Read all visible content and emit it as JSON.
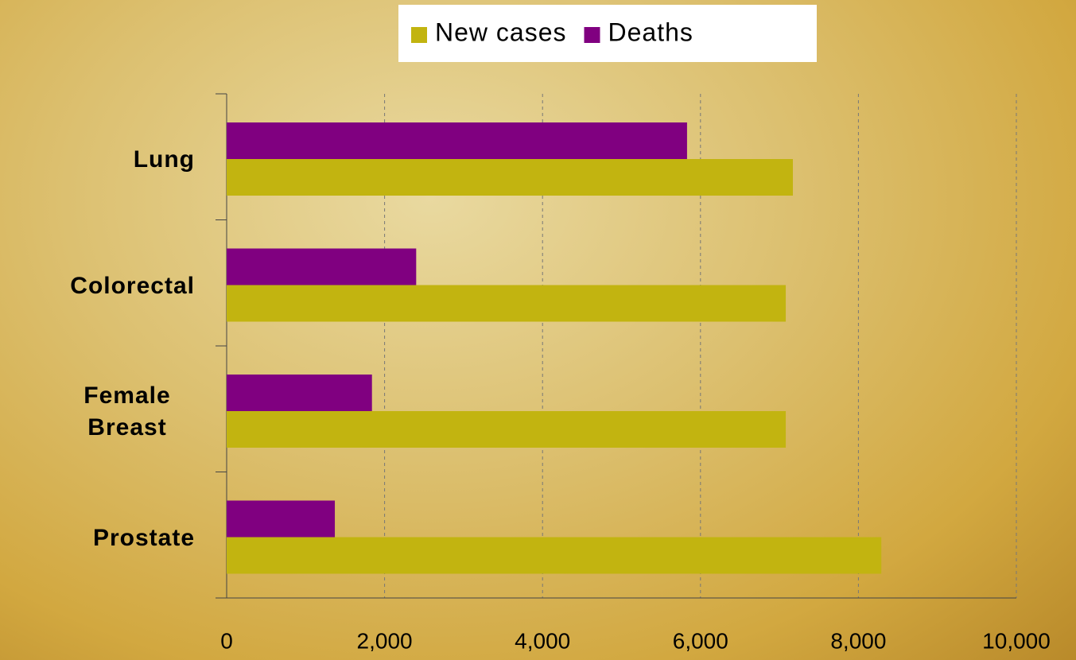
{
  "chart_data": {
    "type": "hbar",
    "categories": [
      "Lung",
      "Colorectal",
      "Female Breast",
      "Prostate"
    ],
    "series": [
      {
        "name": "New cases",
        "color": "#c2b410",
        "values": [
          7170,
          7080,
          7080,
          8290
        ]
      },
      {
        "name": "Deaths",
        "color": "#800080",
        "values": [
          5830,
          2400,
          1840,
          1370
        ]
      }
    ],
    "xlim": [
      0,
      10000
    ],
    "xticks": [
      0,
      {
        "value": 2000,
        "label": "2,000"
      },
      {
        "value": 4000,
        "label": "4,000"
      },
      {
        "value": 6000,
        "label": "6,000"
      },
      {
        "value": 8000,
        "label": "8,000"
      },
      {
        "value": 10000,
        "label": "10,000"
      }
    ],
    "grid": true,
    "legend": "top"
  }
}
